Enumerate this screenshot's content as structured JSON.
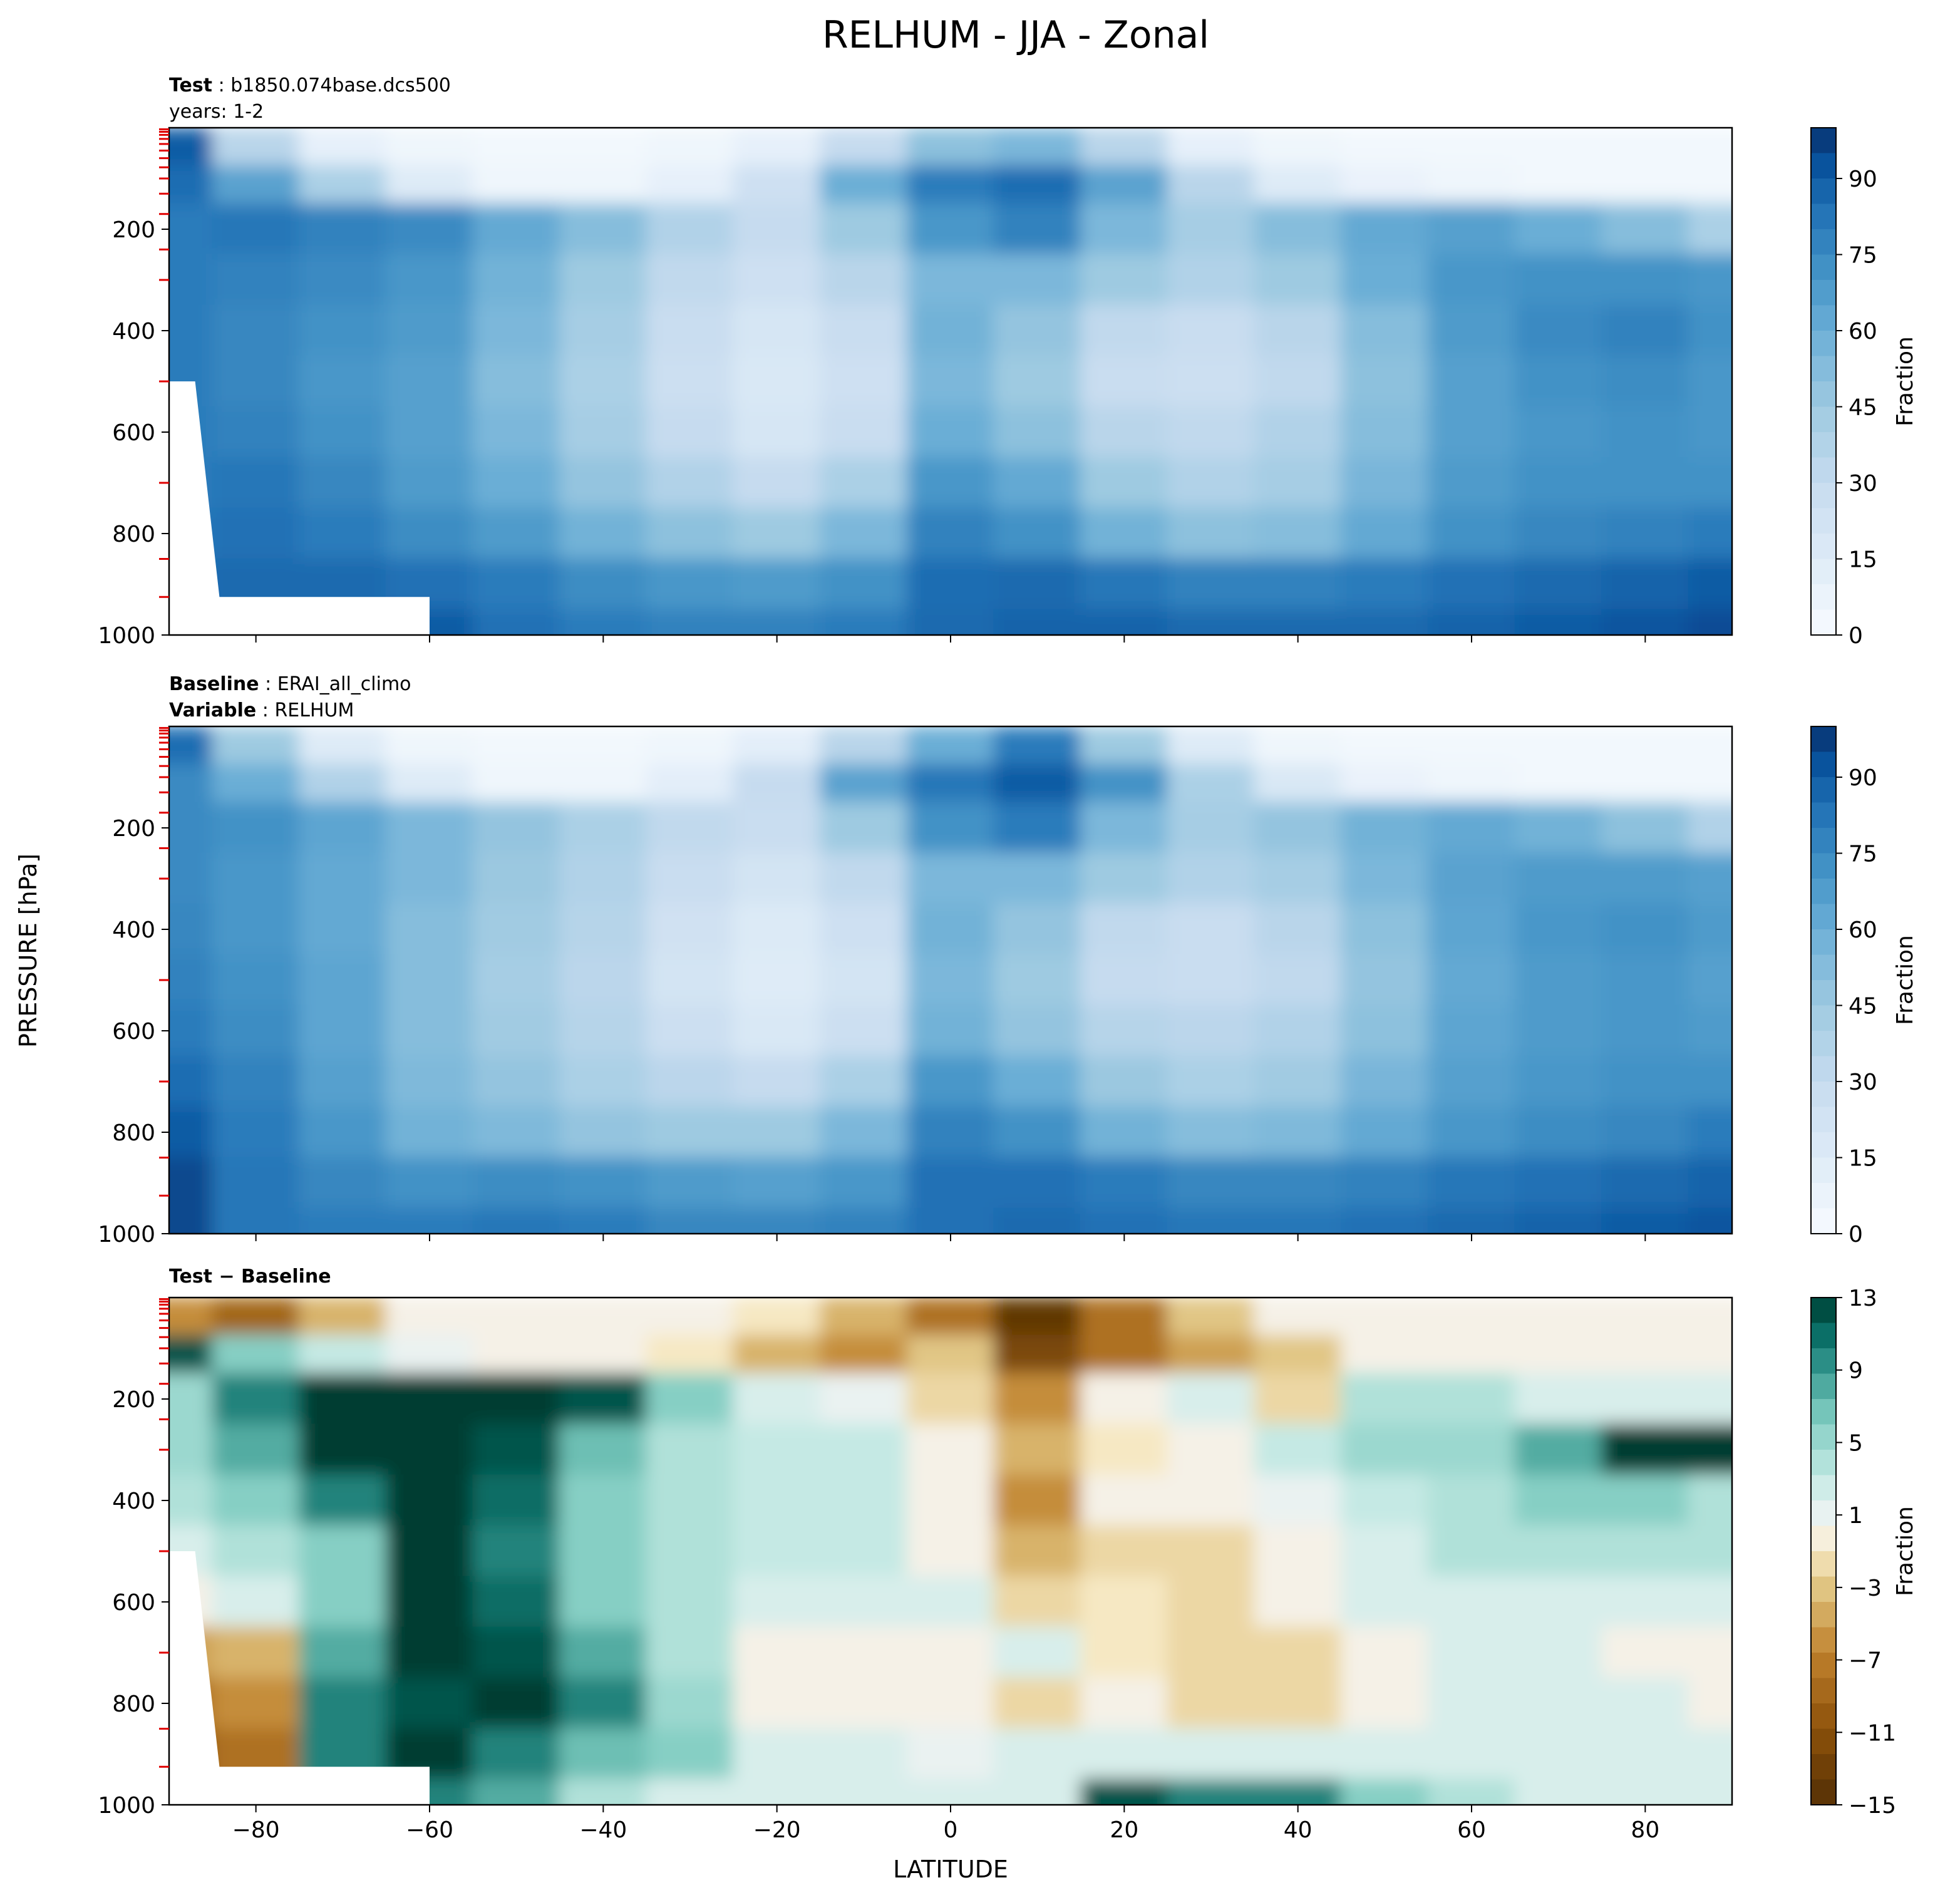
{
  "figure": {
    "title": "RELHUM - JJA - Zonal",
    "ylabel": "PRESSURE [hPa]",
    "xlabel": "LATITUDE"
  },
  "panels": [
    {
      "id": "test",
      "label_lines": [
        {
          "bold": "Test",
          "rest": "b1850.074base.dcs500"
        },
        {
          "bold": "",
          "rest": "years: 1-2"
        }
      ],
      "colorbar": {
        "label": "Fraction",
        "ticks": [
          "0",
          "15",
          "30",
          "45",
          "60",
          "75",
          "90"
        ],
        "palette": "Blues"
      }
    },
    {
      "id": "baseline",
      "label_lines": [
        {
          "bold": "Baseline",
          "rest": "ERAI_all_climo"
        },
        {
          "bold": "Variable",
          "rest": "RELHUM"
        }
      ],
      "colorbar": {
        "label": "Fraction",
        "ticks": [
          "0",
          "15",
          "30",
          "45",
          "60",
          "75",
          "90"
        ],
        "palette": "Blues"
      }
    },
    {
      "id": "difference",
      "label_lines": [
        {
          "bold": "Test − Baseline",
          "rest": ""
        }
      ],
      "colorbar": {
        "label": "Fraction",
        "ticks": [
          "13",
          "9",
          "5",
          "1",
          "−3",
          "−7",
          "−11",
          "−15"
        ],
        "palette": "BrBG"
      }
    }
  ],
  "chart_data": {
    "type": "heatmap",
    "title": "RELHUM - JJA - Zonal",
    "xlabel": "LATITUDE",
    "ylabel": "PRESSURE [hPa]",
    "x_ticks": [
      -80,
      -60,
      -40,
      -20,
      0,
      20,
      40,
      60,
      80
    ],
    "y_ticks": [
      200,
      400,
      600,
      800,
      1000
    ],
    "xlim": [
      -90,
      90
    ],
    "ylim": [
      1000,
      0
    ],
    "lat_grid": [
      -90,
      -80,
      -70,
      -60,
      -50,
      -40,
      -30,
      -20,
      -10,
      0,
      10,
      20,
      30,
      40,
      50,
      60,
      70,
      80,
      90
    ],
    "pressure_grid": [
      50,
      100,
      200,
      300,
      400,
      500,
      600,
      700,
      800,
      900,
      1000
    ],
    "series": [
      {
        "name": "Test",
        "colorbar_range": [
          0,
          100
        ],
        "values": [
          [
            90,
            35,
            10,
            5,
            3,
            3,
            5,
            10,
            30,
            50,
            55,
            35,
            10,
            5,
            3,
            3,
            3,
            3,
            3
          ],
          [
            85,
            65,
            40,
            15,
            5,
            5,
            10,
            25,
            60,
            80,
            85,
            65,
            35,
            15,
            8,
            5,
            3,
            3,
            3
          ],
          [
            80,
            82,
            78,
            75,
            62,
            52,
            38,
            30,
            45,
            70,
            78,
            55,
            42,
            52,
            62,
            66,
            60,
            52,
            40
          ],
          [
            80,
            78,
            75,
            70,
            58,
            45,
            32,
            25,
            35,
            55,
            55,
            45,
            38,
            45,
            60,
            70,
            72,
            72,
            70
          ],
          [
            80,
            76,
            72,
            68,
            55,
            42,
            28,
            20,
            28,
            58,
            48,
            32,
            28,
            35,
            52,
            68,
            75,
            78,
            72
          ],
          [
            80,
            76,
            70,
            66,
            52,
            40,
            26,
            18,
            25,
            55,
            45,
            28,
            26,
            32,
            50,
            66,
            72,
            74,
            70
          ],
          [
            80,
            78,
            72,
            66,
            55,
            42,
            30,
            20,
            28,
            60,
            50,
            35,
            32,
            38,
            52,
            66,
            70,
            72,
            70
          ],
          [
            80,
            82,
            76,
            68,
            60,
            48,
            38,
            30,
            40,
            70,
            62,
            45,
            38,
            42,
            56,
            68,
            72,
            72,
            72
          ],
          [
            82,
            84,
            80,
            74,
            68,
            58,
            50,
            45,
            55,
            78,
            72,
            58,
            50,
            52,
            62,
            72,
            76,
            78,
            80
          ],
          [
            85,
            86,
            86,
            84,
            80,
            74,
            70,
            68,
            72,
            85,
            86,
            82,
            78,
            78,
            80,
            84,
            86,
            88,
            90
          ],
          [
            85,
            86,
            88,
            90,
            84,
            80,
            78,
            78,
            80,
            86,
            88,
            88,
            86,
            86,
            86,
            88,
            90,
            92,
            94
          ]
        ]
      },
      {
        "name": "Baseline",
        "colorbar_range": [
          0,
          100
        ],
        "values": [
          [
            85,
            45,
            15,
            5,
            3,
            3,
            5,
            12,
            35,
            60,
            80,
            45,
            15,
            5,
            3,
            3,
            3,
            3,
            3
          ],
          [
            75,
            60,
            38,
            15,
            5,
            5,
            12,
            30,
            65,
            82,
            90,
            72,
            40,
            18,
            8,
            5,
            3,
            3,
            3
          ],
          [
            75,
            72,
            64,
            55,
            48,
            40,
            32,
            28,
            45,
            72,
            80,
            55,
            42,
            48,
            58,
            62,
            58,
            50,
            38
          ],
          [
            75,
            70,
            62,
            55,
            46,
            38,
            28,
            22,
            32,
            55,
            55,
            45,
            38,
            42,
            55,
            65,
            68,
            68,
            66
          ],
          [
            76,
            70,
            62,
            52,
            44,
            36,
            24,
            16,
            25,
            58,
            48,
            32,
            28,
            35,
            50,
            64,
            70,
            72,
            68
          ],
          [
            78,
            72,
            64,
            52,
            42,
            34,
            22,
            15,
            22,
            55,
            45,
            30,
            28,
            32,
            48,
            62,
            68,
            70,
            66
          ],
          [
            80,
            74,
            64,
            52,
            44,
            36,
            26,
            18,
            26,
            58,
            48,
            36,
            34,
            38,
            50,
            64,
            68,
            70,
            68
          ],
          [
            85,
            78,
            66,
            54,
            48,
            40,
            34,
            30,
            40,
            70,
            60,
            46,
            40,
            44,
            56,
            66,
            70,
            72,
            72
          ],
          [
            90,
            80,
            70,
            58,
            54,
            48,
            45,
            45,
            55,
            78,
            72,
            58,
            52,
            54,
            62,
            70,
            74,
            76,
            80
          ],
          [
            95,
            82,
            76,
            72,
            74,
            72,
            68,
            66,
            70,
            84,
            84,
            80,
            76,
            76,
            78,
            82,
            84,
            86,
            88
          ],
          [
            95,
            82,
            80,
            80,
            82,
            80,
            76,
            76,
            78,
            84,
            86,
            84,
            82,
            82,
            84,
            86,
            88,
            90,
            92
          ]
        ]
      },
      {
        "name": "Test − Baseline",
        "colorbar_range": [
          -15,
          13
        ],
        "values": [
          [
            -6,
            -9,
            -4,
            0,
            0,
            0,
            0,
            -1,
            -4,
            -8,
            -14,
            -8,
            -3,
            0,
            0,
            0,
            0,
            0,
            0
          ],
          [
            12,
            6,
            3,
            1,
            0,
            0,
            -1,
            -4,
            -6,
            -3,
            -12,
            -8,
            -5,
            -3,
            0,
            0,
            0,
            0,
            0
          ],
          [
            5,
            10,
            14,
            20,
            14,
            12,
            6,
            2,
            1,
            -2,
            -6,
            0,
            2,
            -2,
            4,
            4,
            2,
            2,
            2
          ],
          [
            5,
            8,
            13,
            15,
            12,
            7,
            4,
            3,
            3,
            0,
            -4,
            -1,
            0,
            3,
            5,
            5,
            8,
            14,
            14
          ],
          [
            4,
            6,
            10,
            16,
            11,
            6,
            4,
            3,
            3,
            0,
            -6,
            0,
            0,
            1,
            3,
            4,
            6,
            6,
            4
          ],
          [
            2,
            4,
            6,
            14,
            10,
            6,
            4,
            3,
            3,
            0,
            -4,
            -2,
            -2,
            0,
            2,
            4,
            4,
            4,
            4
          ],
          [
            0,
            2,
            6,
            14,
            11,
            6,
            4,
            2,
            2,
            2,
            -2,
            -1,
            -2,
            0,
            2,
            2,
            2,
            2,
            2
          ],
          [
            -5,
            -4,
            8,
            15,
            12,
            8,
            4,
            0,
            0,
            0,
            2,
            -1,
            -2,
            -2,
            0,
            2,
            2,
            0,
            0
          ],
          [
            -8,
            -6,
            10,
            12,
            14,
            10,
            5,
            0,
            0,
            0,
            -2,
            0,
            -2,
            -2,
            0,
            2,
            2,
            2,
            0
          ],
          [
            -10,
            -8,
            10,
            16,
            10,
            7,
            6,
            2,
            2,
            1,
            2,
            2,
            2,
            2,
            2,
            2,
            2,
            2,
            2
          ],
          [
            -10,
            -8,
            10,
            10,
            8,
            4,
            2,
            2,
            2,
            2,
            2,
            12,
            10,
            10,
            6,
            4,
            2,
            2,
            2
          ]
        ]
      }
    ]
  }
}
